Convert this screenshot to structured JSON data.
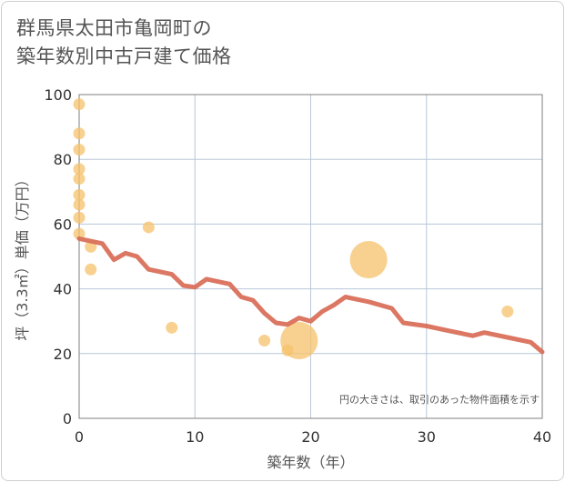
{
  "chart_data": {
    "type": "scatter+line",
    "title_lines": [
      "群馬県太田市亀岡町の",
      "築年数別中古戸建て価格"
    ],
    "xlabel": "築年数（年）",
    "ylabel": "坪（3.3㎡）単価（万円）",
    "xlim": [
      0,
      40
    ],
    "ylim": [
      0,
      100
    ],
    "x_ticks": [
      0,
      10,
      20,
      30,
      40
    ],
    "y_ticks": [
      0,
      20,
      40,
      60,
      80,
      100
    ],
    "grid": true,
    "note": "円の大きさは、取引のあった物件面積を示す",
    "colors": {
      "bubble": "#f5c26b",
      "line": "#d9705a",
      "grid": "#b8c8d8",
      "border": "#7f7f7f"
    },
    "bubbles": [
      {
        "x": 0,
        "y": 97,
        "size": 1
      },
      {
        "x": 0,
        "y": 88,
        "size": 1
      },
      {
        "x": 0,
        "y": 83,
        "size": 1
      },
      {
        "x": 0,
        "y": 77,
        "size": 1
      },
      {
        "x": 0,
        "y": 74,
        "size": 1
      },
      {
        "x": 0,
        "y": 69,
        "size": 1
      },
      {
        "x": 0,
        "y": 66,
        "size": 1
      },
      {
        "x": 0,
        "y": 62,
        "size": 1
      },
      {
        "x": 0,
        "y": 57,
        "size": 1
      },
      {
        "x": 1,
        "y": 53,
        "size": 1
      },
      {
        "x": 1,
        "y": 46,
        "size": 1
      },
      {
        "x": 6,
        "y": 59,
        "size": 1
      },
      {
        "x": 8,
        "y": 28,
        "size": 1
      },
      {
        "x": 16,
        "y": 24,
        "size": 1
      },
      {
        "x": 18,
        "y": 21,
        "size": 1
      },
      {
        "x": 19,
        "y": 24,
        "size": 10
      },
      {
        "x": 25,
        "y": 49,
        "size": 10
      },
      {
        "x": 37,
        "y": 33,
        "size": 1
      }
    ],
    "trend_line": {
      "x": [
        0,
        2,
        3,
        4,
        5,
        6,
        8,
        9,
        10,
        11,
        13,
        14,
        15,
        16,
        17,
        18,
        19,
        20,
        21,
        22,
        23,
        25,
        27,
        28,
        30,
        32,
        34,
        35,
        37,
        39,
        40
      ],
      "y": [
        55.5,
        54,
        49,
        51,
        50,
        46,
        44.5,
        41,
        40.5,
        43,
        41.5,
        37.5,
        36.5,
        32.5,
        29.5,
        29,
        31,
        30,
        33,
        35,
        37.5,
        36,
        34,
        29.5,
        28.5,
        27,
        25.5,
        26.5,
        25,
        23.5,
        20.5
      ]
    }
  }
}
